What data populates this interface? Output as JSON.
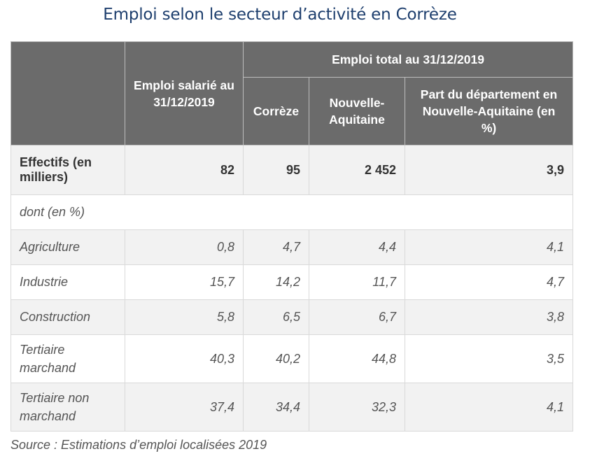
{
  "title": "Emploi selon le secteur d’activité en Corrèze",
  "header": {
    "col_salarie": "Emploi salarié au 31/12/2019",
    "group_total": "Emploi total au 31/12/2019",
    "col_correze": "Corrèze",
    "col_na": "Nouvelle-Aquitaine",
    "col_part": "Part du département en Nouvelle-Aquitaine (en %)"
  },
  "effectifs": {
    "label": "Effectifs (en milliers)",
    "values": [
      "82",
      "95",
      "2 452",
      "3,9"
    ]
  },
  "dont_label": "dont (en %)",
  "rows": [
    {
      "label": "Agriculture",
      "values": [
        "0,8",
        "4,7",
        "4,4",
        "4,1"
      ]
    },
    {
      "label": "Industrie",
      "values": [
        "15,7",
        "14,2",
        "11,7",
        "4,7"
      ]
    },
    {
      "label": "Construction",
      "values": [
        "5,8",
        "6,5",
        "6,7",
        "3,8"
      ]
    },
    {
      "label": "Tertiaire marchand",
      "values": [
        "40,3",
        "40,2",
        "44,8",
        "3,5"
      ]
    },
    {
      "label": "Tertiaire non marchand",
      "values": [
        "37,4",
        "34,4",
        "32,3",
        "4,1"
      ]
    }
  ],
  "source": "Source : Estimations d’emploi localisées 2019"
}
